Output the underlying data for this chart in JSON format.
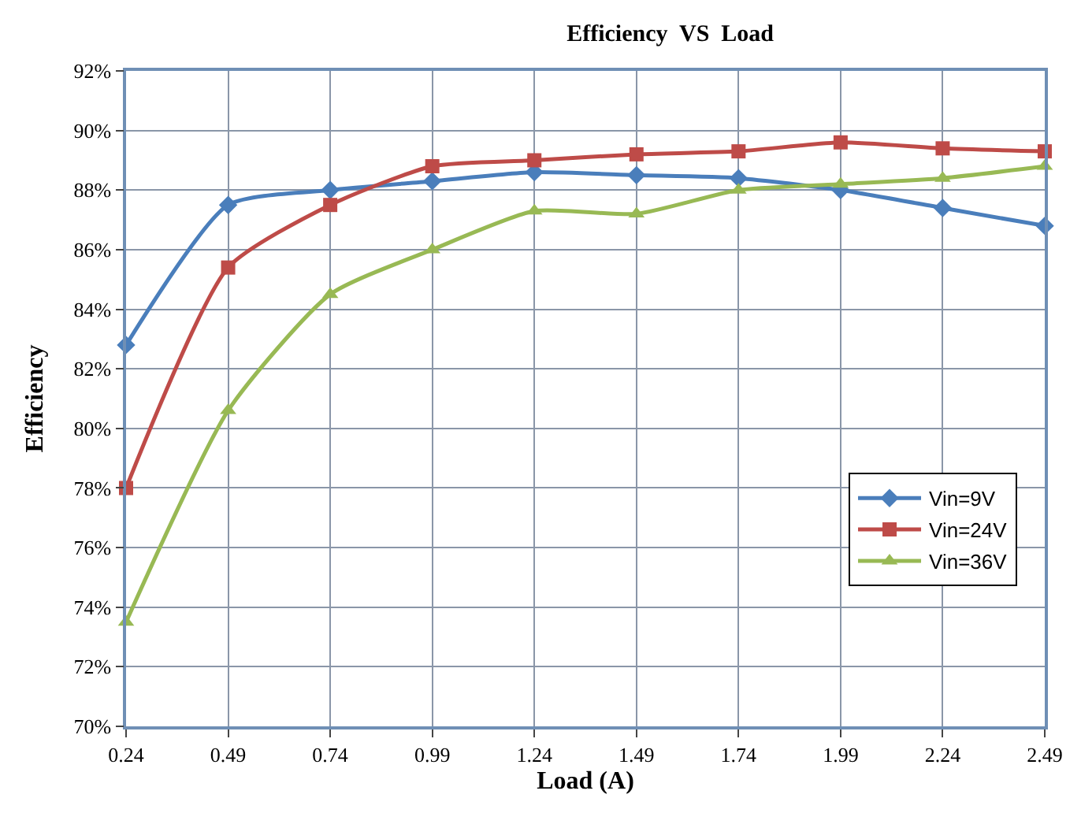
{
  "chart_data": {
    "type": "line",
    "title": "Efficiency  VS  Load",
    "xlabel": "Load (A)",
    "ylabel": "Efficiency",
    "x": [
      0.24,
      0.49,
      0.74,
      0.99,
      1.24,
      1.49,
      1.74,
      1.99,
      2.24,
      2.49
    ],
    "xlim": [
      0.24,
      2.49
    ],
    "xticks": [
      0.24,
      0.49,
      0.74,
      0.99,
      1.24,
      1.49,
      1.74,
      1.99,
      2.24,
      2.49
    ],
    "ylim": [
      70,
      92
    ],
    "yticks": [
      {
        "value": 70,
        "label": "70%"
      },
      {
        "value": 72,
        "label": "72%"
      },
      {
        "value": 74,
        "label": "74%"
      },
      {
        "value": 76,
        "label": "76%"
      },
      {
        "value": 78,
        "label": "78%"
      },
      {
        "value": 80,
        "label": "80%"
      },
      {
        "value": 82,
        "label": "82%"
      },
      {
        "value": 84,
        "label": "84%"
      },
      {
        "value": 86,
        "label": "86%"
      },
      {
        "value": 88,
        "label": "88%"
      },
      {
        "value": 90,
        "label": "90%"
      },
      {
        "value": 92,
        "label": "92%"
      }
    ],
    "series": [
      {
        "name": "Vin=9V",
        "color": "#4a7ebb",
        "marker": "diamond",
        "values": [
          82.8,
          87.5,
          88.0,
          88.3,
          88.6,
          88.5,
          88.4,
          88.0,
          87.4,
          86.8
        ]
      },
      {
        "name": "Vin=24V",
        "color": "#be4b48",
        "marker": "square",
        "values": [
          78.0,
          85.4,
          87.5,
          88.8,
          89.0,
          89.2,
          89.3,
          89.6,
          89.4,
          89.3
        ]
      },
      {
        "name": "Vin=36V",
        "color": "#98b954",
        "marker": "triangle",
        "values": [
          73.5,
          80.6,
          84.5,
          86.0,
          87.3,
          87.2,
          88.0,
          88.2,
          88.4,
          88.8
        ]
      }
    ],
    "grid": true,
    "legend": "right",
    "line_style": "solid"
  }
}
